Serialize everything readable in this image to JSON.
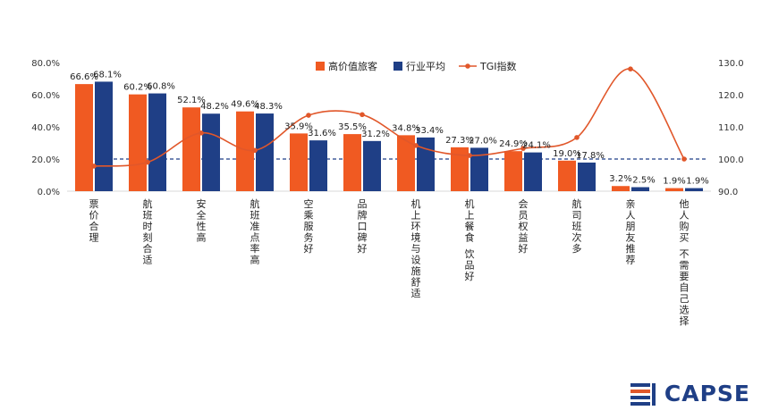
{
  "chart_data": {
    "type": "bar",
    "categories": [
      "票价合理",
      "航班时刻合适",
      "安全性高",
      "航班准点率高",
      "空乘服务好",
      "品牌口碑好",
      "机上环境与设施舒适",
      "机上餐食 饮品好",
      "会员权益好",
      "航司班次多",
      "亲人朋友推荐",
      "他人购买 不需要自己选择"
    ],
    "series": [
      {
        "name": "高价值旅客",
        "color": "#f05a22",
        "axis": "left",
        "values": [
          66.6,
          60.2,
          52.1,
          49.6,
          35.9,
          35.5,
          34.8,
          27.3,
          24.9,
          19.0,
          3.2,
          1.9
        ]
      },
      {
        "name": "行业平均",
        "color": "#1f3f86",
        "axis": "left",
        "values": [
          68.1,
          60.8,
          48.2,
          48.3,
          31.6,
          31.2,
          33.4,
          27.0,
          24.1,
          17.8,
          2.5,
          1.9
        ]
      },
      {
        "name": "TGI指数",
        "color": "#e1572a",
        "axis": "right",
        "type": "line",
        "values": [
          97.8,
          99.0,
          108.1,
          102.7,
          113.6,
          113.8,
          104.2,
          101.1,
          103.3,
          106.7,
          128.0,
          100.0
        ]
      }
    ],
    "bar_labels": {
      "series0": [
        "66.6%",
        "60.2%",
        "52.1%",
        "49.6%",
        "35.9%",
        "35.5%",
        "34.8%",
        "27.3%",
        "24.9%",
        "19.0%",
        "3.2%",
        "1.9%"
      ],
      "series1": [
        "68.1%",
        "60.8%",
        "48.2%",
        "48.3%",
        "31.6%",
        "31.2%",
        "33.4%",
        "27.0%",
        "24.1%",
        "17.8%",
        "2.5%",
        "1.9%"
      ]
    },
    "y_left": {
      "min": 0,
      "max": 80,
      "ticks": [
        "0.0%",
        "20.0%",
        "40.0%",
        "60.0%",
        "80.0%"
      ]
    },
    "y_right": {
      "min": 90,
      "max": 130,
      "ticks": [
        "90.0",
        "100.0",
        "110.0",
        "120.0",
        "130.0"
      ]
    },
    "reference_line": {
      "axis": "right",
      "value": 100,
      "style": "dashed",
      "color": "#1f3f86"
    },
    "grid": false,
    "legend_position": "top-center"
  },
  "logo": {
    "text": "CAPSE",
    "color": "#1f3f86",
    "accent": "#e1572a"
  }
}
